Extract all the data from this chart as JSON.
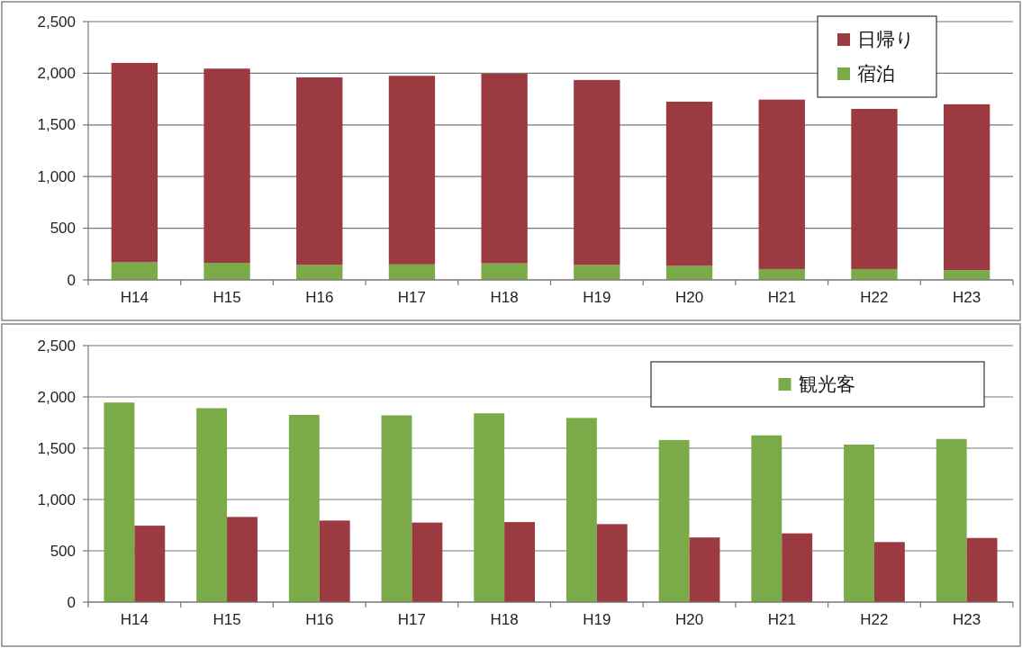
{
  "chart_data": [
    {
      "type": "bar",
      "stacked": true,
      "categories": [
        "H14",
        "H15",
        "H16",
        "H17",
        "H18",
        "H19",
        "H20",
        "H21",
        "H22",
        "H23"
      ],
      "series": [
        {
          "name": "宿泊",
          "color": "#7aab48",
          "values": [
            170,
            165,
            145,
            150,
            160,
            145,
            135,
            105,
            105,
            95
          ]
        },
        {
          "name": "日帰り",
          "color": "#9b3b41",
          "values": [
            1930,
            1880,
            1815,
            1825,
            1835,
            1790,
            1590,
            1640,
            1550,
            1605
          ]
        }
      ],
      "ylim": [
        0,
        2500
      ],
      "yticks": [
        {
          "value": 0,
          "label": "0"
        },
        {
          "value": 500,
          "label": "500"
        },
        {
          "value": 1000,
          "label": "1,000"
        },
        {
          "value": 1500,
          "label": "1,500"
        },
        {
          "value": 2000,
          "label": "2,000"
        },
        {
          "value": 2500,
          "label": "2,500"
        }
      ],
      "grid": "y",
      "legend": "top right"
    },
    {
      "type": "bar",
      "categories": [
        "H14",
        "H15",
        "H16",
        "H17",
        "H18",
        "H19",
        "H20",
        "H21",
        "H22",
        "H23"
      ],
      "series": [
        {
          "name": "観光客",
          "color": "#7aab48",
          "values": [
            1945,
            1890,
            1825,
            1820,
            1840,
            1795,
            1580,
            1625,
            1535,
            1590
          ]
        },
        {
          "color": "#9b3b41",
          "values": [
            745,
            830,
            795,
            775,
            780,
            760,
            630,
            670,
            585,
            625
          ]
        }
      ],
      "ylim": [
        0,
        2500
      ],
      "yticks": [
        {
          "value": 0,
          "label": "0"
        },
        {
          "value": 500,
          "label": "500"
        },
        {
          "value": 1000,
          "label": "1,000"
        },
        {
          "value": 1500,
          "label": "1,500"
        },
        {
          "value": 2000,
          "label": "2,000"
        },
        {
          "value": 2500,
          "label": "2,500"
        }
      ],
      "grid": "y",
      "legend": "top right"
    }
  ]
}
